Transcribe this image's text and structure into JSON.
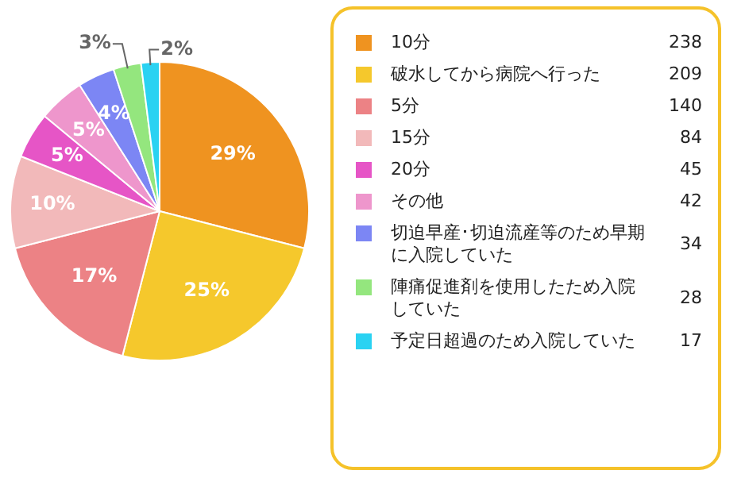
{
  "chart_data": {
    "type": "pie",
    "categories": [
      "10分",
      "破水してから病院へ行った",
      "5分",
      "15分",
      "20分",
      "その他",
      "切迫早産･切迫流産等のため早期に入院していた",
      "陣痛促進剤を使用したため入院していた",
      "予定日超過のため入院していた"
    ],
    "values": [
      29,
      25,
      17,
      10,
      5,
      5,
      4,
      3,
      2
    ],
    "annotations": [
      "238",
      "209",
      "140",
      "84",
      "45",
      "42",
      "34",
      "28",
      "17"
    ],
    "colors": [
      "#ef9320",
      "#f5c82c",
      "#ec8285",
      "#f2b9ba",
      "#e655c6",
      "#ee96cc",
      "#7c86f4",
      "#94e67e",
      "#2ad2f2"
    ],
    "value_labels": [
      "29%",
      "25%",
      "17%",
      "10%",
      "5%",
      "5%",
      "4%",
      "3%",
      "2%"
    ],
    "legend": "right"
  }
}
